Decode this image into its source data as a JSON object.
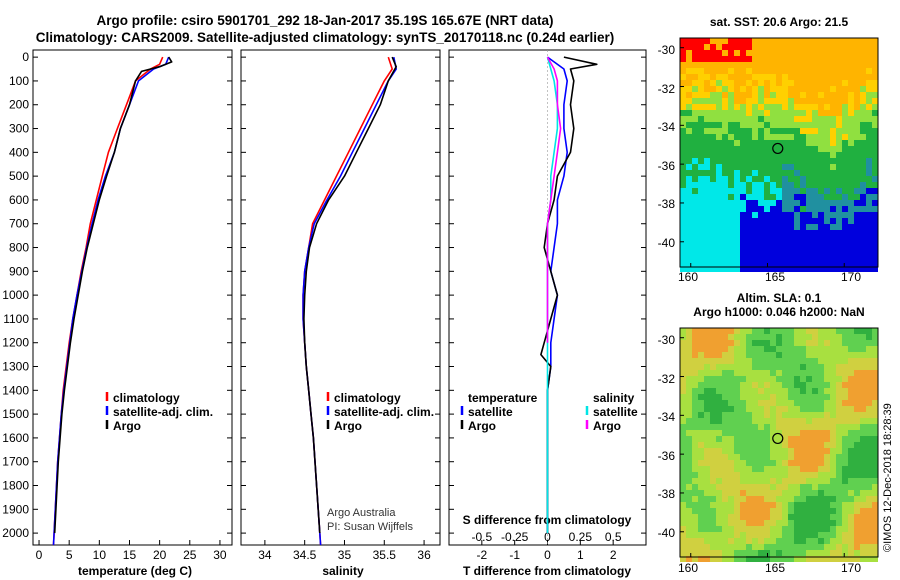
{
  "header": {
    "title_line1": "Argo profile: csiro 5901701_292 18-Jan-2017 35.19S 165.67E (NRT data)",
    "title_line2": "Climatology: CARS2009. Satellite-adjusted climatology: synTS_20170118.nc (0.24d earlier)"
  },
  "stamp": "©IMOS 12-Dec-2018 18:28:39",
  "colors": {
    "climatology": "#ff0000",
    "satellite": "#0000ff",
    "argo": "#000000",
    "salinity_satellite": "#00e5e5",
    "salinity_argo": "#ff00ff"
  },
  "chart_data": [
    {
      "type": "line",
      "id": "temperature",
      "xlabel": "temperature (deg C)",
      "xlim": [
        -1,
        32
      ],
      "ylim": [
        2050,
        -30
      ],
      "xticks": [
        0,
        5,
        10,
        15,
        20,
        25,
        30
      ],
      "yticks": [
        0,
        100,
        200,
        300,
        400,
        500,
        600,
        700,
        800,
        900,
        1000,
        1100,
        1200,
        1300,
        1400,
        1500,
        1600,
        1700,
        1800,
        1900,
        2000
      ],
      "legend": [
        "climatology",
        "satellite-adj. clim.",
        "Argo"
      ],
      "series": [
        {
          "name": "climatology",
          "color": "#ff0000",
          "points": [
            [
              20.5,
              0
            ],
            [
              20,
              30
            ],
            [
              18.5,
              50
            ],
            [
              16,
              100
            ],
            [
              14.5,
              200
            ],
            [
              13,
              300
            ],
            [
              11.5,
              400
            ],
            [
              10.5,
              500
            ],
            [
              9.5,
              600
            ],
            [
              8.5,
              700
            ],
            [
              7.8,
              800
            ],
            [
              7,
              900
            ],
            [
              6.3,
              1000
            ],
            [
              5.6,
              1100
            ],
            [
              5,
              1200
            ],
            [
              4.5,
              1300
            ],
            [
              4,
              1400
            ],
            [
              3.7,
              1500
            ],
            [
              3.4,
              1600
            ],
            [
              3.1,
              1700
            ],
            [
              2.9,
              1800
            ],
            [
              2.7,
              1900
            ],
            [
              2.5,
              2000
            ],
            [
              2.4,
              2050
            ]
          ]
        },
        {
          "name": "satellite-adj. clim.",
          "color": "#0000ff",
          "points": [
            [
              21.5,
              0
            ],
            [
              21,
              30
            ],
            [
              19,
              50
            ],
            [
              16.5,
              100
            ],
            [
              15,
              200
            ],
            [
              13.5,
              300
            ],
            [
              12.5,
              400
            ],
            [
              11,
              500
            ],
            [
              9.8,
              600
            ],
            [
              8.8,
              700
            ],
            [
              7.9,
              800
            ],
            [
              7.1,
              900
            ],
            [
              6.3,
              1000
            ],
            [
              5.6,
              1100
            ],
            [
              5.1,
              1200
            ],
            [
              4.6,
              1300
            ],
            [
              4.1,
              1400
            ],
            [
              3.7,
              1500
            ],
            [
              3.4,
              1600
            ],
            [
              3.1,
              1700
            ],
            [
              2.9,
              1800
            ],
            [
              2.7,
              1900
            ],
            [
              2.5,
              2000
            ],
            [
              2.4,
              2050
            ]
          ]
        },
        {
          "name": "Argo",
          "color": "#000000",
          "points": [
            [
              21.5,
              0
            ],
            [
              22,
              20
            ],
            [
              20,
              40
            ],
            [
              17,
              60
            ],
            [
              16,
              100
            ],
            [
              15,
              200
            ],
            [
              13.5,
              300
            ],
            [
              12.5,
              400
            ],
            [
              11.2,
              500
            ],
            [
              10,
              600
            ],
            [
              9,
              700
            ],
            [
              8,
              800
            ],
            [
              7.2,
              900
            ],
            [
              6.5,
              1000
            ],
            [
              5.8,
              1100
            ],
            [
              5.2,
              1200
            ],
            [
              4.7,
              1300
            ],
            [
              4.2,
              1400
            ],
            [
              3.8,
              1500
            ],
            [
              3.5,
              1600
            ],
            [
              3.2,
              1700
            ],
            [
              3,
              1800
            ],
            [
              2.8,
              1900
            ],
            [
              2.6,
              2000
            ]
          ]
        }
      ]
    },
    {
      "type": "line",
      "id": "salinity",
      "xlabel": "salinity",
      "xlim": [
        33.7,
        36.2
      ],
      "ylim": [
        2050,
        -30
      ],
      "xticks": [
        34,
        34.5,
        35,
        35.5,
        36
      ],
      "legend": [
        "climatology",
        "satellite-adj. clim.",
        "Argo"
      ],
      "annotation": [
        "Argo Australia",
        "PI: Susan Wijffels"
      ],
      "series": [
        {
          "name": "climatology",
          "color": "#ff0000",
          "points": [
            [
              35.55,
              0
            ],
            [
              35.6,
              50
            ],
            [
              35.5,
              100
            ],
            [
              35.35,
              200
            ],
            [
              35.2,
              300
            ],
            [
              35.05,
              400
            ],
            [
              34.9,
              500
            ],
            [
              34.75,
              600
            ],
            [
              34.6,
              700
            ],
            [
              34.55,
              800
            ],
            [
              34.5,
              900
            ],
            [
              34.48,
              1000
            ],
            [
              34.48,
              1100
            ],
            [
              34.5,
              1200
            ],
            [
              34.52,
              1300
            ],
            [
              34.55,
              1400
            ],
            [
              34.58,
              1500
            ],
            [
              34.61,
              1600
            ],
            [
              34.63,
              1700
            ],
            [
              34.65,
              1800
            ],
            [
              34.67,
              1900
            ],
            [
              34.69,
              2000
            ],
            [
              34.7,
              2050
            ]
          ]
        },
        {
          "name": "satellite-adj. clim.",
          "color": "#0000ff",
          "points": [
            [
              35.62,
              0
            ],
            [
              35.65,
              50
            ],
            [
              35.55,
              100
            ],
            [
              35.4,
              200
            ],
            [
              35.25,
              300
            ],
            [
              35.1,
              400
            ],
            [
              34.95,
              500
            ],
            [
              34.78,
              600
            ],
            [
              34.62,
              700
            ],
            [
              34.55,
              800
            ],
            [
              34.5,
              900
            ],
            [
              34.48,
              1000
            ],
            [
              34.48,
              1100
            ],
            [
              34.5,
              1200
            ],
            [
              34.52,
              1300
            ],
            [
              34.55,
              1400
            ],
            [
              34.58,
              1500
            ],
            [
              34.61,
              1600
            ],
            [
              34.63,
              1700
            ],
            [
              34.65,
              1800
            ],
            [
              34.67,
              1900
            ],
            [
              34.69,
              2000
            ],
            [
              34.7,
              2050
            ]
          ]
        },
        {
          "name": "Argo",
          "color": "#000000",
          "points": [
            [
              35.6,
              0
            ],
            [
              35.65,
              40
            ],
            [
              35.55,
              100
            ],
            [
              35.45,
              200
            ],
            [
              35.3,
              300
            ],
            [
              35.15,
              400
            ],
            [
              35,
              500
            ],
            [
              34.8,
              600
            ],
            [
              34.65,
              700
            ],
            [
              34.56,
              800
            ],
            [
              34.52,
              900
            ],
            [
              34.5,
              1000
            ],
            [
              34.49,
              1100
            ],
            [
              34.5,
              1200
            ],
            [
              34.52,
              1300
            ],
            [
              34.55,
              1400
            ],
            [
              34.58,
              1500
            ],
            [
              34.61,
              1600
            ],
            [
              34.63,
              1700
            ],
            [
              34.65,
              1800
            ],
            [
              34.67,
              1900
            ],
            [
              34.69,
              2000
            ]
          ]
        }
      ]
    },
    {
      "type": "line",
      "id": "difference",
      "xlabel": "T difference from climatology",
      "top_axis_label": "S difference from climatology",
      "xlim": [
        -3,
        3
      ],
      "ylim": [
        2050,
        -30
      ],
      "xticks": [
        -2,
        -1,
        0,
        1,
        2
      ],
      "xtick_labels": [
        "-2",
        "-1",
        "0",
        "1",
        "2"
      ],
      "top_ticks": [
        -0.5,
        -0.25,
        0,
        0.25,
        0.5
      ],
      "top_tick_labels": [
        "-0.5",
        "-0.25",
        "0",
        "0.25",
        "0.5"
      ],
      "legend_left_title": "temperature",
      "legend_right_title": "salinity",
      "legend_left": [
        "satellite",
        "Argo"
      ],
      "legend_right": [
        "satellite",
        "Argo"
      ],
      "series": [
        {
          "name": "temperature satellite",
          "color": "#0000ff",
          "points": [
            [
              0,
              0
            ],
            [
              0.5,
              50
            ],
            [
              0.6,
              100
            ],
            [
              0.5,
              200
            ],
            [
              0.5,
              300
            ],
            [
              0.6,
              400
            ],
            [
              0.5,
              500
            ],
            [
              0.3,
              600
            ],
            [
              0.3,
              700
            ],
            [
              0.2,
              800
            ],
            [
              0.1,
              900
            ],
            [
              0.3,
              1000
            ],
            [
              0.2,
              1100
            ],
            [
              0.1,
              1200
            ],
            [
              0.1,
              1300
            ],
            [
              0,
              1400
            ],
            [
              0,
              1600
            ],
            [
              0,
              1800
            ],
            [
              0,
              2000
            ]
          ]
        },
        {
          "name": "temperature Argo",
          "color": "#000000",
          "points": [
            [
              0.5,
              0
            ],
            [
              1.5,
              30
            ],
            [
              0.7,
              50
            ],
            [
              0.8,
              100
            ],
            [
              0.7,
              200
            ],
            [
              0.8,
              300
            ],
            [
              0.7,
              400
            ],
            [
              0.3,
              500
            ],
            [
              0.2,
              600
            ],
            [
              0,
              700
            ],
            [
              -0.1,
              800
            ],
            [
              0.1,
              900
            ],
            [
              0.3,
              1000
            ],
            [
              0.1,
              1100
            ],
            [
              -0.1,
              1200
            ],
            [
              -0.2,
              1250
            ],
            [
              0.1,
              1300
            ],
            [
              0,
              1400
            ],
            [
              0,
              1600
            ],
            [
              0,
              1800
            ],
            [
              0,
              2000
            ]
          ]
        },
        {
          "name": "salinity satellite",
          "color": "#00e5e5",
          "points": [
            [
              0,
              0
            ],
            [
              0.2,
              100
            ],
            [
              0.3,
              200
            ],
            [
              0.3,
              300
            ],
            [
              0.2,
              400
            ],
            [
              0.1,
              500
            ],
            [
              0.1,
              600
            ],
            [
              0,
              700
            ],
            [
              0,
              800
            ],
            [
              0,
              1000
            ],
            [
              0,
              1200
            ],
            [
              0,
              1400
            ],
            [
              0,
              1600
            ],
            [
              0,
              1800
            ],
            [
              0,
              2000
            ]
          ]
        },
        {
          "name": "salinity Argo",
          "color": "#ff00ff",
          "points": [
            [
              0,
              0
            ],
            [
              0.2,
              50
            ],
            [
              0.3,
              100
            ],
            [
              0.3,
              200
            ],
            [
              0.4,
              300
            ],
            [
              0.3,
              400
            ],
            [
              0.2,
              500
            ],
            [
              0.1,
              600
            ],
            [
              0,
              700
            ],
            [
              0,
              900
            ],
            [
              0,
              1100
            ],
            [
              0,
              1200
            ]
          ]
        }
      ]
    }
  ],
  "maps": [
    {
      "id": "sst",
      "title": "sat. SST: 20.6 Argo: 21.5",
      "xticks": [
        "160",
        "165",
        "170"
      ],
      "yticks": [
        "-30",
        "-32",
        "-34",
        "-36",
        "-38",
        "-40"
      ],
      "marker": {
        "lon": 165.67,
        "lat": -35.19
      }
    },
    {
      "id": "sla",
      "title_line1": "Altim. SLA: 0.1",
      "title_line2": "Argo h1000: 0.046 h2000: NaN",
      "xticks": [
        "160",
        "165",
        "170"
      ],
      "yticks": [
        "-30",
        "-32",
        "-34",
        "-36",
        "-38",
        "-40"
      ],
      "marker": {
        "lon": 165.67,
        "lat": -35.19
      }
    }
  ]
}
